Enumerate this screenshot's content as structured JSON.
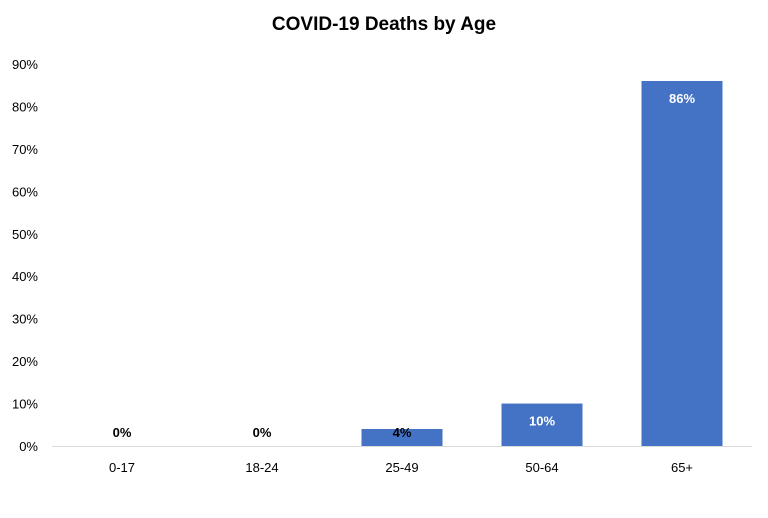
{
  "chart_data": {
    "type": "bar",
    "title": "COVID-19 Deaths by Age",
    "categories": [
      "0-17",
      "18-24",
      "25-49",
      "50-64",
      "65+"
    ],
    "values": [
      0,
      0,
      4,
      10,
      86
    ],
    "data_labels": [
      "0%",
      "0%",
      "4%",
      "10%",
      "86%"
    ],
    "ylim": [
      0,
      90
    ],
    "ytick_step": 10,
    "ytick_labels": [
      "0%",
      "10%",
      "20%",
      "30%",
      "40%",
      "50%",
      "60%",
      "70%",
      "80%",
      "90%"
    ],
    "xlabel": "",
    "ylabel": "",
    "grid": false,
    "legend": "none",
    "bar_color": "#4472C4",
    "label_color_inside": "#ffffff",
    "label_color_outside": "#000000"
  }
}
